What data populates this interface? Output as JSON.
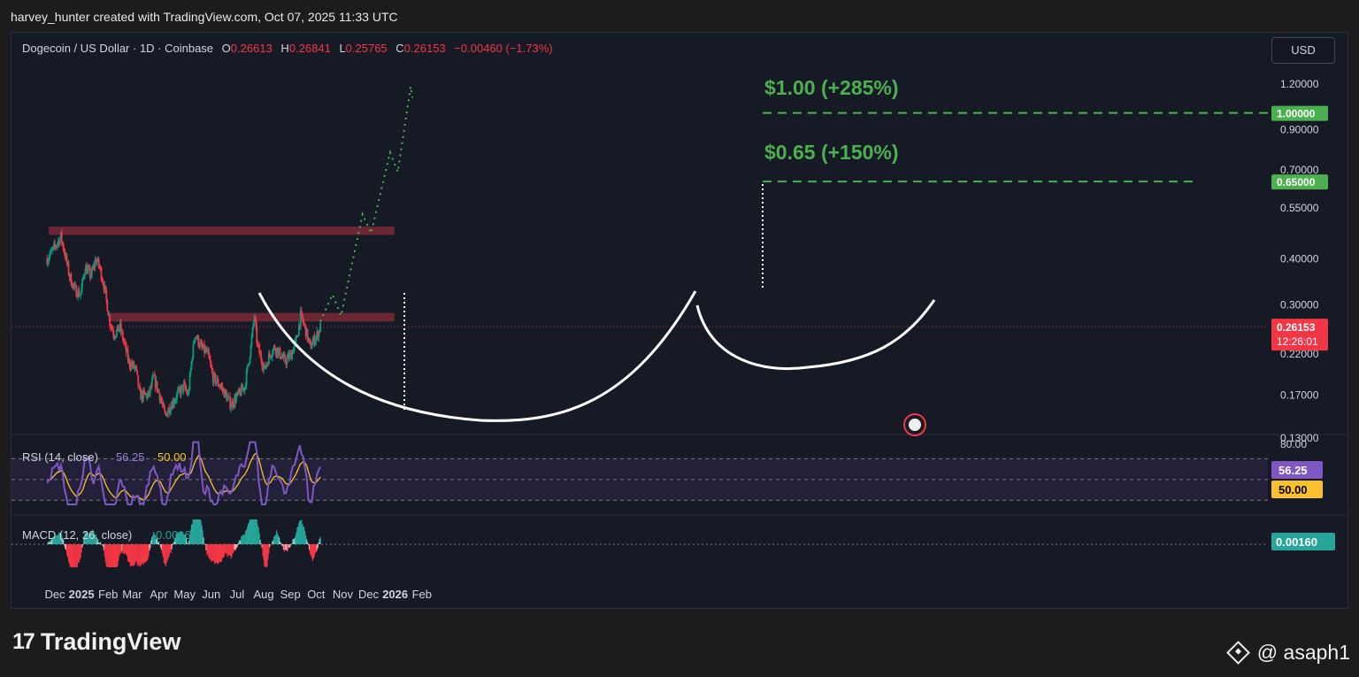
{
  "credit": "harvey_hunter created with TradingView.com, Oct 07, 2025 11:33 UTC",
  "legend": {
    "symbol": "Dogecoin / US Dollar · 1D · Coinbase",
    "o_label": "O",
    "o": "0.26613",
    "h_label": "H",
    "h": "0.26841",
    "l_label": "L",
    "l": "0.25765",
    "c_label": "C",
    "c": "0.26153",
    "change": "−0.00460 (−1.73%)"
  },
  "currency": "USD",
  "annotations": {
    "target1": "$1.00 (+285%)",
    "target2": "$0.65 (+150%)"
  },
  "price_tags": {
    "last": "0.26153",
    "countdown": "12:26:01",
    "t1": "1.00000",
    "t2": "0.65000"
  },
  "indicators": {
    "rsi_legend": "RSI (14, close)",
    "rsi_value": "56.25",
    "rsi_ma": "50.00",
    "rsi_axis_top": "80.00",
    "macd_legend": "MACD (12, 26, close)",
    "macd_value": "0.00160"
  },
  "footer": {
    "brand": "TradingView",
    "logo_glyph": "17",
    "watermark": "@ asaph1"
  },
  "colors": {
    "up": "#089981",
    "down": "#f23645",
    "target": "#4caf50",
    "rsi": "#7e57c2",
    "rsi_ma": "#fbc02d",
    "resistance": "#7a2a36"
  },
  "chart_data": {
    "type": "candlestick",
    "title": "Dogecoin / US Dollar · 1D · Coinbase",
    "y_scale": "log",
    "ylim": [
      0.11,
      1.26
    ],
    "y_ticks": [
      "1.20000",
      "0.90000",
      "0.70000",
      "0.55000",
      "0.40000",
      "0.30000",
      "0.22000",
      "0.17000",
      "0.13000"
    ],
    "x_ticks": [
      "Dec",
      "2025",
      "Feb",
      "Mar",
      "Apr",
      "May",
      "Jun",
      "Jul",
      "Aug",
      "Sep",
      "Oct",
      "Nov",
      "Dec",
      "2026",
      "Feb"
    ],
    "close_path": [
      [
        "2024-11-22",
        0.4
      ],
      [
        "2024-11-28",
        0.42
      ],
      [
        "2024-12-08",
        0.46
      ],
      [
        "2024-12-12",
        0.42
      ],
      [
        "2024-12-18",
        0.36
      ],
      [
        "2024-12-24",
        0.33
      ],
      [
        "2024-12-31",
        0.32
      ],
      [
        "2025-01-05",
        0.38
      ],
      [
        "2025-01-12",
        0.36
      ],
      [
        "2025-01-18",
        0.4
      ],
      [
        "2025-01-22",
        0.38
      ],
      [
        "2025-01-27",
        0.34
      ],
      [
        "2025-02-03",
        0.27
      ],
      [
        "2025-02-08",
        0.25
      ],
      [
        "2025-02-15",
        0.26
      ],
      [
        "2025-02-25",
        0.21
      ],
      [
        "2025-03-05",
        0.2
      ],
      [
        "2025-03-10",
        0.17
      ],
      [
        "2025-03-20",
        0.17
      ],
      [
        "2025-03-26",
        0.19
      ],
      [
        "2025-04-02",
        0.17
      ],
      [
        "2025-04-08",
        0.15
      ],
      [
        "2025-04-15",
        0.16
      ],
      [
        "2025-04-22",
        0.17
      ],
      [
        "2025-04-30",
        0.18
      ],
      [
        "2025-05-05",
        0.17
      ],
      [
        "2025-05-10",
        0.22
      ],
      [
        "2025-05-13",
        0.25
      ],
      [
        "2025-05-20",
        0.23
      ],
      [
        "2025-05-28",
        0.22
      ],
      [
        "2025-06-03",
        0.19
      ],
      [
        "2025-06-12",
        0.18
      ],
      [
        "2025-06-18",
        0.17
      ],
      [
        "2025-06-24",
        0.16
      ],
      [
        "2025-07-02",
        0.17
      ],
      [
        "2025-07-10",
        0.18
      ],
      [
        "2025-07-17",
        0.23
      ],
      [
        "2025-07-21",
        0.28
      ],
      [
        "2025-07-25",
        0.23
      ],
      [
        "2025-08-02",
        0.2
      ],
      [
        "2025-08-08",
        0.22
      ],
      [
        "2025-08-14",
        0.23
      ],
      [
        "2025-08-20",
        0.22
      ],
      [
        "2025-08-26",
        0.21
      ],
      [
        "2025-09-02",
        0.22
      ],
      [
        "2025-09-08",
        0.24
      ],
      [
        "2025-09-13",
        0.28
      ],
      [
        "2025-09-18",
        0.26
      ],
      [
        "2025-09-24",
        0.23
      ],
      [
        "2025-09-28",
        0.24
      ],
      [
        "2025-10-03",
        0.25
      ],
      [
        "2025-10-06",
        0.26153
      ]
    ],
    "resistance_zones": [
      {
        "from": "2024-11-24",
        "to": "2025-12-31",
        "low": 0.465,
        "high": 0.49
      },
      {
        "from": "2025-02-01",
        "to": "2025-12-31",
        "low": 0.27,
        "high": 0.285
      }
    ],
    "projection": [
      [
        "2025-10-06",
        0.27
      ],
      [
        "2025-10-20",
        0.32
      ],
      [
        "2025-10-30",
        0.28
      ],
      [
        "2025-11-24",
        0.53
      ],
      [
        "2025-12-04",
        0.47
      ],
      [
        "2025-12-26",
        0.78
      ],
      [
        "2026-01-04",
        0.69
      ],
      [
        "2026-01-19",
        1.18
      ],
      [
        "2026-01-21",
        1.1
      ]
    ],
    "targets": [
      {
        "label": "$1.00 (+285%)",
        "price": 1.0
      },
      {
        "label": "$0.65 (+150%)",
        "price": 0.65
      }
    ],
    "last_price": 0.26153,
    "rsi": {
      "period": 14,
      "value": 56.25,
      "ma": 50.0,
      "levels": [
        70,
        50,
        30
      ]
    },
    "macd": {
      "fast": 12,
      "slow": 26,
      "value": 0.0016
    }
  }
}
